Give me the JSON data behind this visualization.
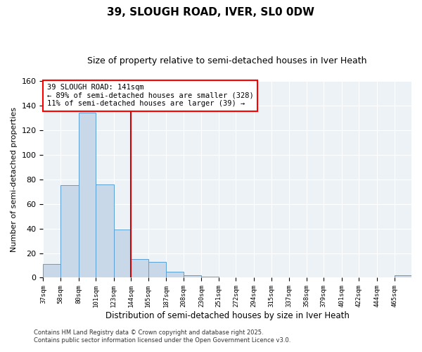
{
  "title": "39, SLOUGH ROAD, IVER, SL0 0DW",
  "subtitle": "Size of property relative to semi-detached houses in Iver Heath",
  "xlabel": "Distribution of semi-detached houses by size in Iver Heath",
  "ylabel": "Number of semi-detached properties",
  "bin_labels": [
    "37sqm",
    "58sqm",
    "80sqm",
    "101sqm",
    "123sqm",
    "144sqm",
    "165sqm",
    "187sqm",
    "208sqm",
    "230sqm",
    "251sqm",
    "272sqm",
    "294sqm",
    "315sqm",
    "337sqm",
    "358sqm",
    "379sqm",
    "401sqm",
    "422sqm",
    "444sqm",
    "465sqm"
  ],
  "bar_values": [
    11,
    75,
    134,
    76,
    39,
    15,
    13,
    5,
    2,
    1,
    0,
    0,
    0,
    0,
    0,
    0,
    0,
    0,
    0,
    0,
    2
  ],
  "bin_edges": [
    37,
    58,
    80,
    101,
    123,
    144,
    165,
    187,
    208,
    230,
    251,
    272,
    294,
    315,
    337,
    358,
    379,
    401,
    422,
    444,
    465,
    486
  ],
  "vline_x": 144,
  "bar_color": "#c8d8e8",
  "bar_edge_color": "#5b9fd4",
  "vline_color": "#cc0000",
  "annotation_line1": "39 SLOUGH ROAD: 141sqm",
  "annotation_line2": "← 89% of semi-detached houses are smaller (328)",
  "annotation_line3": "11% of semi-detached houses are larger (39) →",
  "ylim": [
    0,
    160
  ],
  "yticks": [
    0,
    20,
    40,
    60,
    80,
    100,
    120,
    140,
    160
  ],
  "background_color": "#edf2f7",
  "title_fontsize": 11,
  "subtitle_fontsize": 9,
  "footer_line1": "Contains HM Land Registry data © Crown copyright and database right 2025.",
  "footer_line2": "Contains public sector information licensed under the Open Government Licence v3.0."
}
